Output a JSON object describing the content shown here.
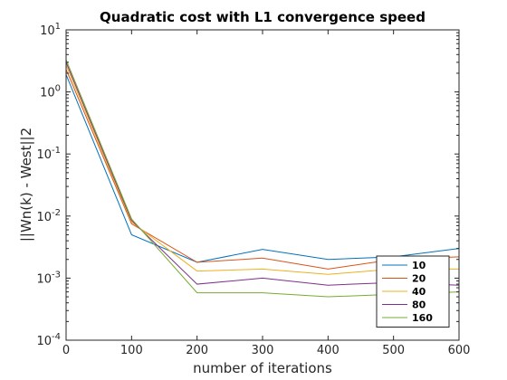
{
  "chart_data": {
    "type": "line",
    "title": "Quadratic cost with L1 convergence speed",
    "xlabel": "number of iterations",
    "ylabel": "||Wn(k) - West||2",
    "x": [
      0,
      100,
      200,
      300,
      400,
      500,
      600
    ],
    "xlim": [
      0,
      600
    ],
    "xticks": [
      0,
      100,
      200,
      300,
      400,
      500,
      600
    ],
    "xtick_labels": [
      "0",
      "100",
      "200",
      "300",
      "400",
      "500",
      "600"
    ],
    "yscale": "log",
    "ylim": [
      0.0001,
      10
    ],
    "yticks": [
      0.0001,
      0.001,
      0.01,
      0.1,
      1,
      10
    ],
    "ytick_labels": [
      {
        "base": "10",
        "exp": "-4"
      },
      {
        "base": "10",
        "exp": "-3"
      },
      {
        "base": "10",
        "exp": "-2"
      },
      {
        "base": "10",
        "exp": "-1"
      },
      {
        "base": "10",
        "exp": "0"
      },
      {
        "base": "10",
        "exp": "1"
      }
    ],
    "grid": false,
    "legend_position": "bottom-right",
    "series": [
      {
        "name": "10",
        "color": "#0072BD",
        "values": [
          1.9,
          0.005,
          0.0018,
          0.0029,
          0.002,
          0.0022,
          0.003
        ]
      },
      {
        "name": "20",
        "color": "#D95319",
        "values": [
          2.3,
          0.0075,
          0.0018,
          0.0021,
          0.0014,
          0.002,
          0.0022
        ]
      },
      {
        "name": "40",
        "color": "#EDB120",
        "values": [
          2.7,
          0.008,
          0.0013,
          0.0014,
          0.00115,
          0.0014,
          0.0014
        ]
      },
      {
        "name": "80",
        "color": "#7E2F8E",
        "values": [
          3.0,
          0.0085,
          0.0008,
          0.001,
          0.00077,
          0.00085,
          0.00077
        ]
      },
      {
        "name": "160",
        "color": "#77AC30",
        "values": [
          3.3,
          0.009,
          0.00058,
          0.00058,
          0.0005,
          0.00055,
          0.0006
        ]
      }
    ]
  }
}
